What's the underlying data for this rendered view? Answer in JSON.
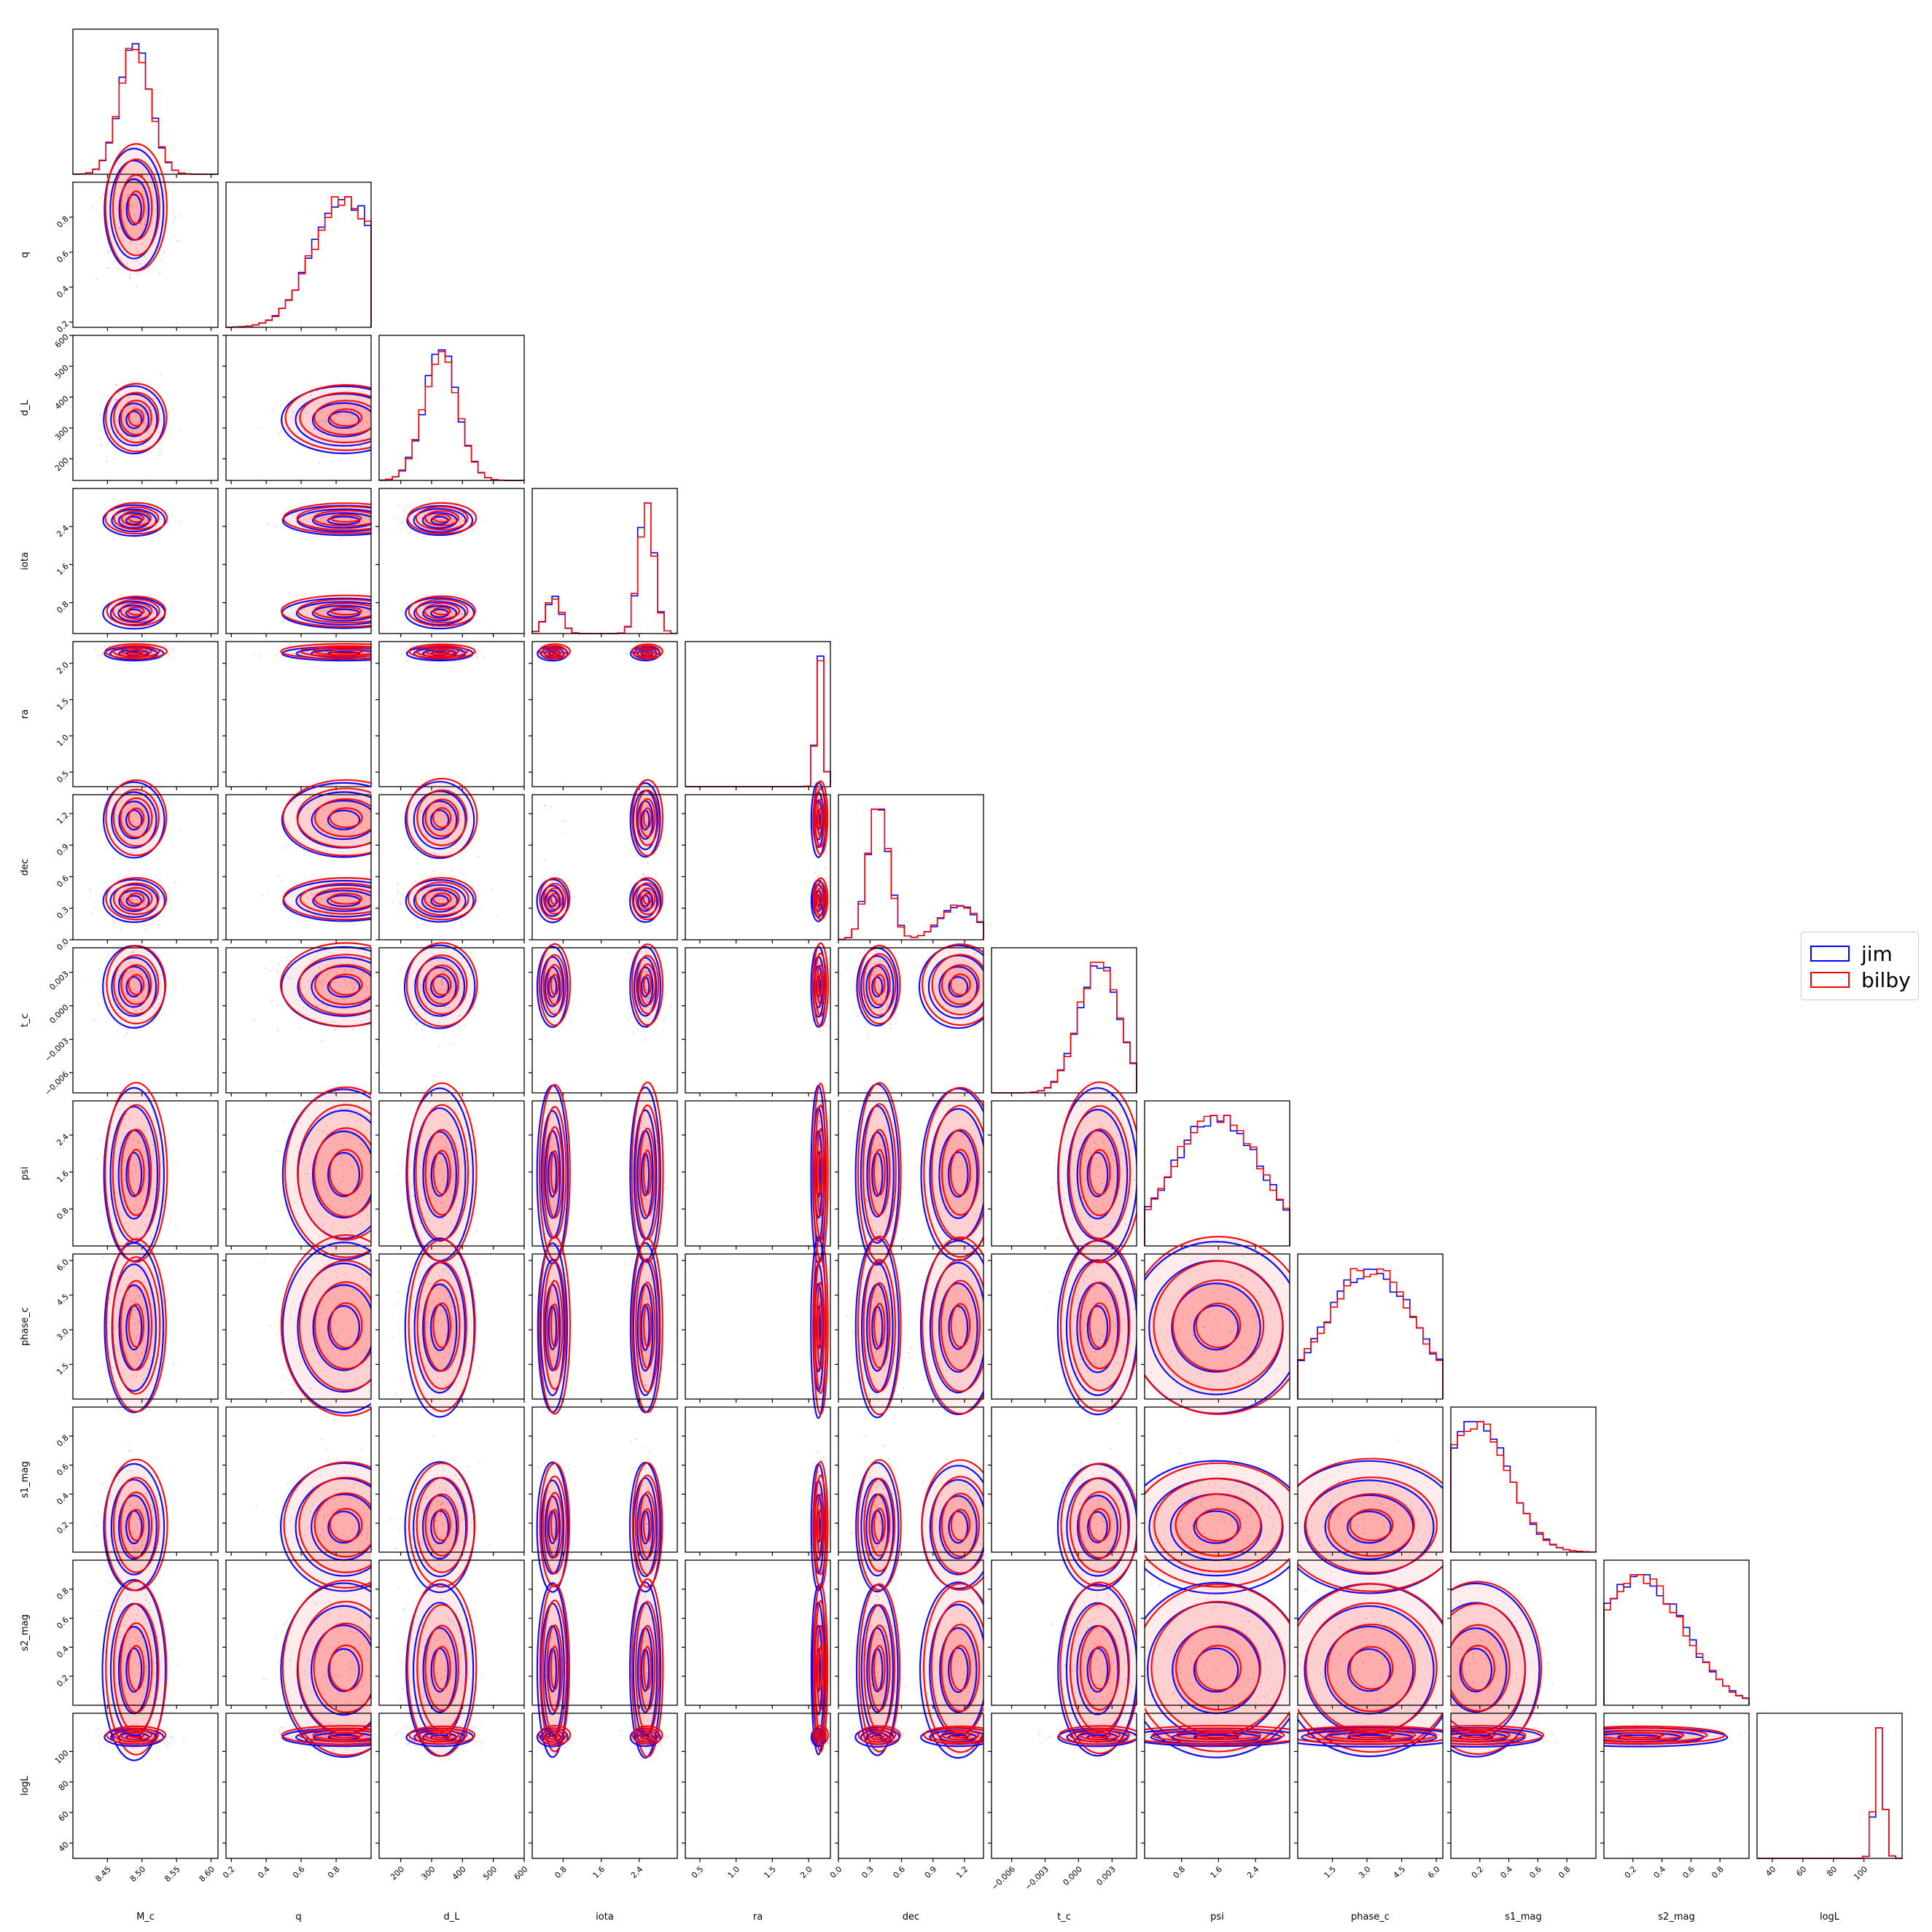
{
  "chart_data": {
    "type": "corner",
    "params": [
      "M_c",
      "q",
      "d_L",
      "iota",
      "ra",
      "dec",
      "t_c",
      "psi",
      "phase_c",
      "s1_mag",
      "s2_mag",
      "logL"
    ],
    "ranges": [
      [
        8.4,
        8.61
      ],
      [
        0.17,
        1.0
      ],
      [
        130,
        600
      ],
      [
        0.15,
        3.2
      ],
      [
        0.3,
        2.3
      ],
      [
        0.0,
        1.38
      ],
      [
        -0.0078,
        0.0052
      ],
      [
        0.0,
        3.14
      ],
      [
        0.0,
        6.28
      ],
      [
        0.0,
        1.0
      ],
      [
        0.0,
        1.0
      ],
      [
        30,
        125
      ]
    ],
    "ticks": [
      {
        "values": [
          8.45,
          8.5,
          8.55,
          8.6
        ],
        "labels": [
          "8.45",
          "8.50",
          "8.55",
          "8.60"
        ]
      },
      {
        "values": [
          0.2,
          0.4,
          0.6,
          0.8
        ],
        "labels": [
          "0.2",
          "0.4",
          "0.6",
          "0.8"
        ]
      },
      {
        "values": [
          200,
          300,
          400,
          500,
          600
        ],
        "labels": [
          "200",
          "300",
          "400",
          "500",
          "600"
        ]
      },
      {
        "values": [
          0.8,
          1.6,
          2.4
        ],
        "labels": [
          "0.8",
          "1.6",
          "2.4"
        ]
      },
      {
        "values": [
          0.5,
          1.0,
          1.5,
          2.0
        ],
        "labels": [
          "0.5",
          "1.0",
          "1.5",
          "2.0"
        ]
      },
      {
        "values": [
          0.0,
          0.3,
          0.6,
          0.9,
          1.2
        ],
        "labels": [
          "0.0",
          "0.3",
          "0.6",
          "0.9",
          "1.2"
        ]
      },
      {
        "values": [
          -0.006,
          -0.003,
          0.0,
          0.003
        ],
        "labels": [
          "−0.006",
          "−0.003",
          "0.000",
          "0.003"
        ]
      },
      {
        "values": [
          0.8,
          1.6,
          2.4
        ],
        "labels": [
          "0.8",
          "1.6",
          "2.4"
        ]
      },
      {
        "values": [
          1.5,
          3.0,
          4.5,
          6.0
        ],
        "labels": [
          "1.5",
          "3.0",
          "4.5",
          "6.0"
        ]
      },
      {
        "values": [
          0.2,
          0.4,
          0.6,
          0.8
        ],
        "labels": [
          "0.2",
          "0.4",
          "0.6",
          "0.8"
        ]
      },
      {
        "values": [
          0.2,
          0.4,
          0.6,
          0.8
        ],
        "labels": [
          "0.2",
          "0.4",
          "0.6",
          "0.8"
        ]
      },
      {
        "values": [
          40,
          60,
          80,
          100
        ],
        "labels": [
          "40",
          "60",
          "80",
          "100"
        ]
      }
    ],
    "modes": [
      [
        {
          "c": 8.49,
          "s": 0.022,
          "w": 1
        }
      ],
      [
        {
          "c": 0.85,
          "s": 0.18,
          "w": 1
        }
      ],
      [
        {
          "c": 330,
          "s": 55,
          "w": 1
        }
      ],
      [
        {
          "c": 2.55,
          "s": 0.16,
          "w": 0.78
        },
        {
          "c": 0.6,
          "s": 0.16,
          "w": 0.22
        }
      ],
      [
        {
          "c": 2.15,
          "s": 0.05,
          "w": 1
        }
      ],
      [
        {
          "c": 0.38,
          "s": 0.1,
          "w": 0.8
        },
        {
          "c": 1.15,
          "s": 0.18,
          "w": 0.2
        }
      ],
      [
        {
          "c": 0.0018,
          "s": 0.0018,
          "w": 1
        }
      ],
      [
        {
          "c": 1.57,
          "s": 0.95,
          "w": 1
        }
      ],
      [
        {
          "c": 3.14,
          "s": 1.9,
          "w": 1
        }
      ],
      [
        {
          "c": 0.18,
          "s": 0.22,
          "w": 1
        }
      ],
      [
        {
          "c": 0.25,
          "s": 0.3,
          "w": 1
        }
      ],
      [
        {
          "c": 110,
          "s": 3,
          "w": 1
        }
      ]
    ],
    "series": [
      {
        "name": "jim",
        "color": "#0000ff"
      },
      {
        "name": "bilby",
        "color": "#ff0000"
      }
    ],
    "legend_position": "right"
  }
}
